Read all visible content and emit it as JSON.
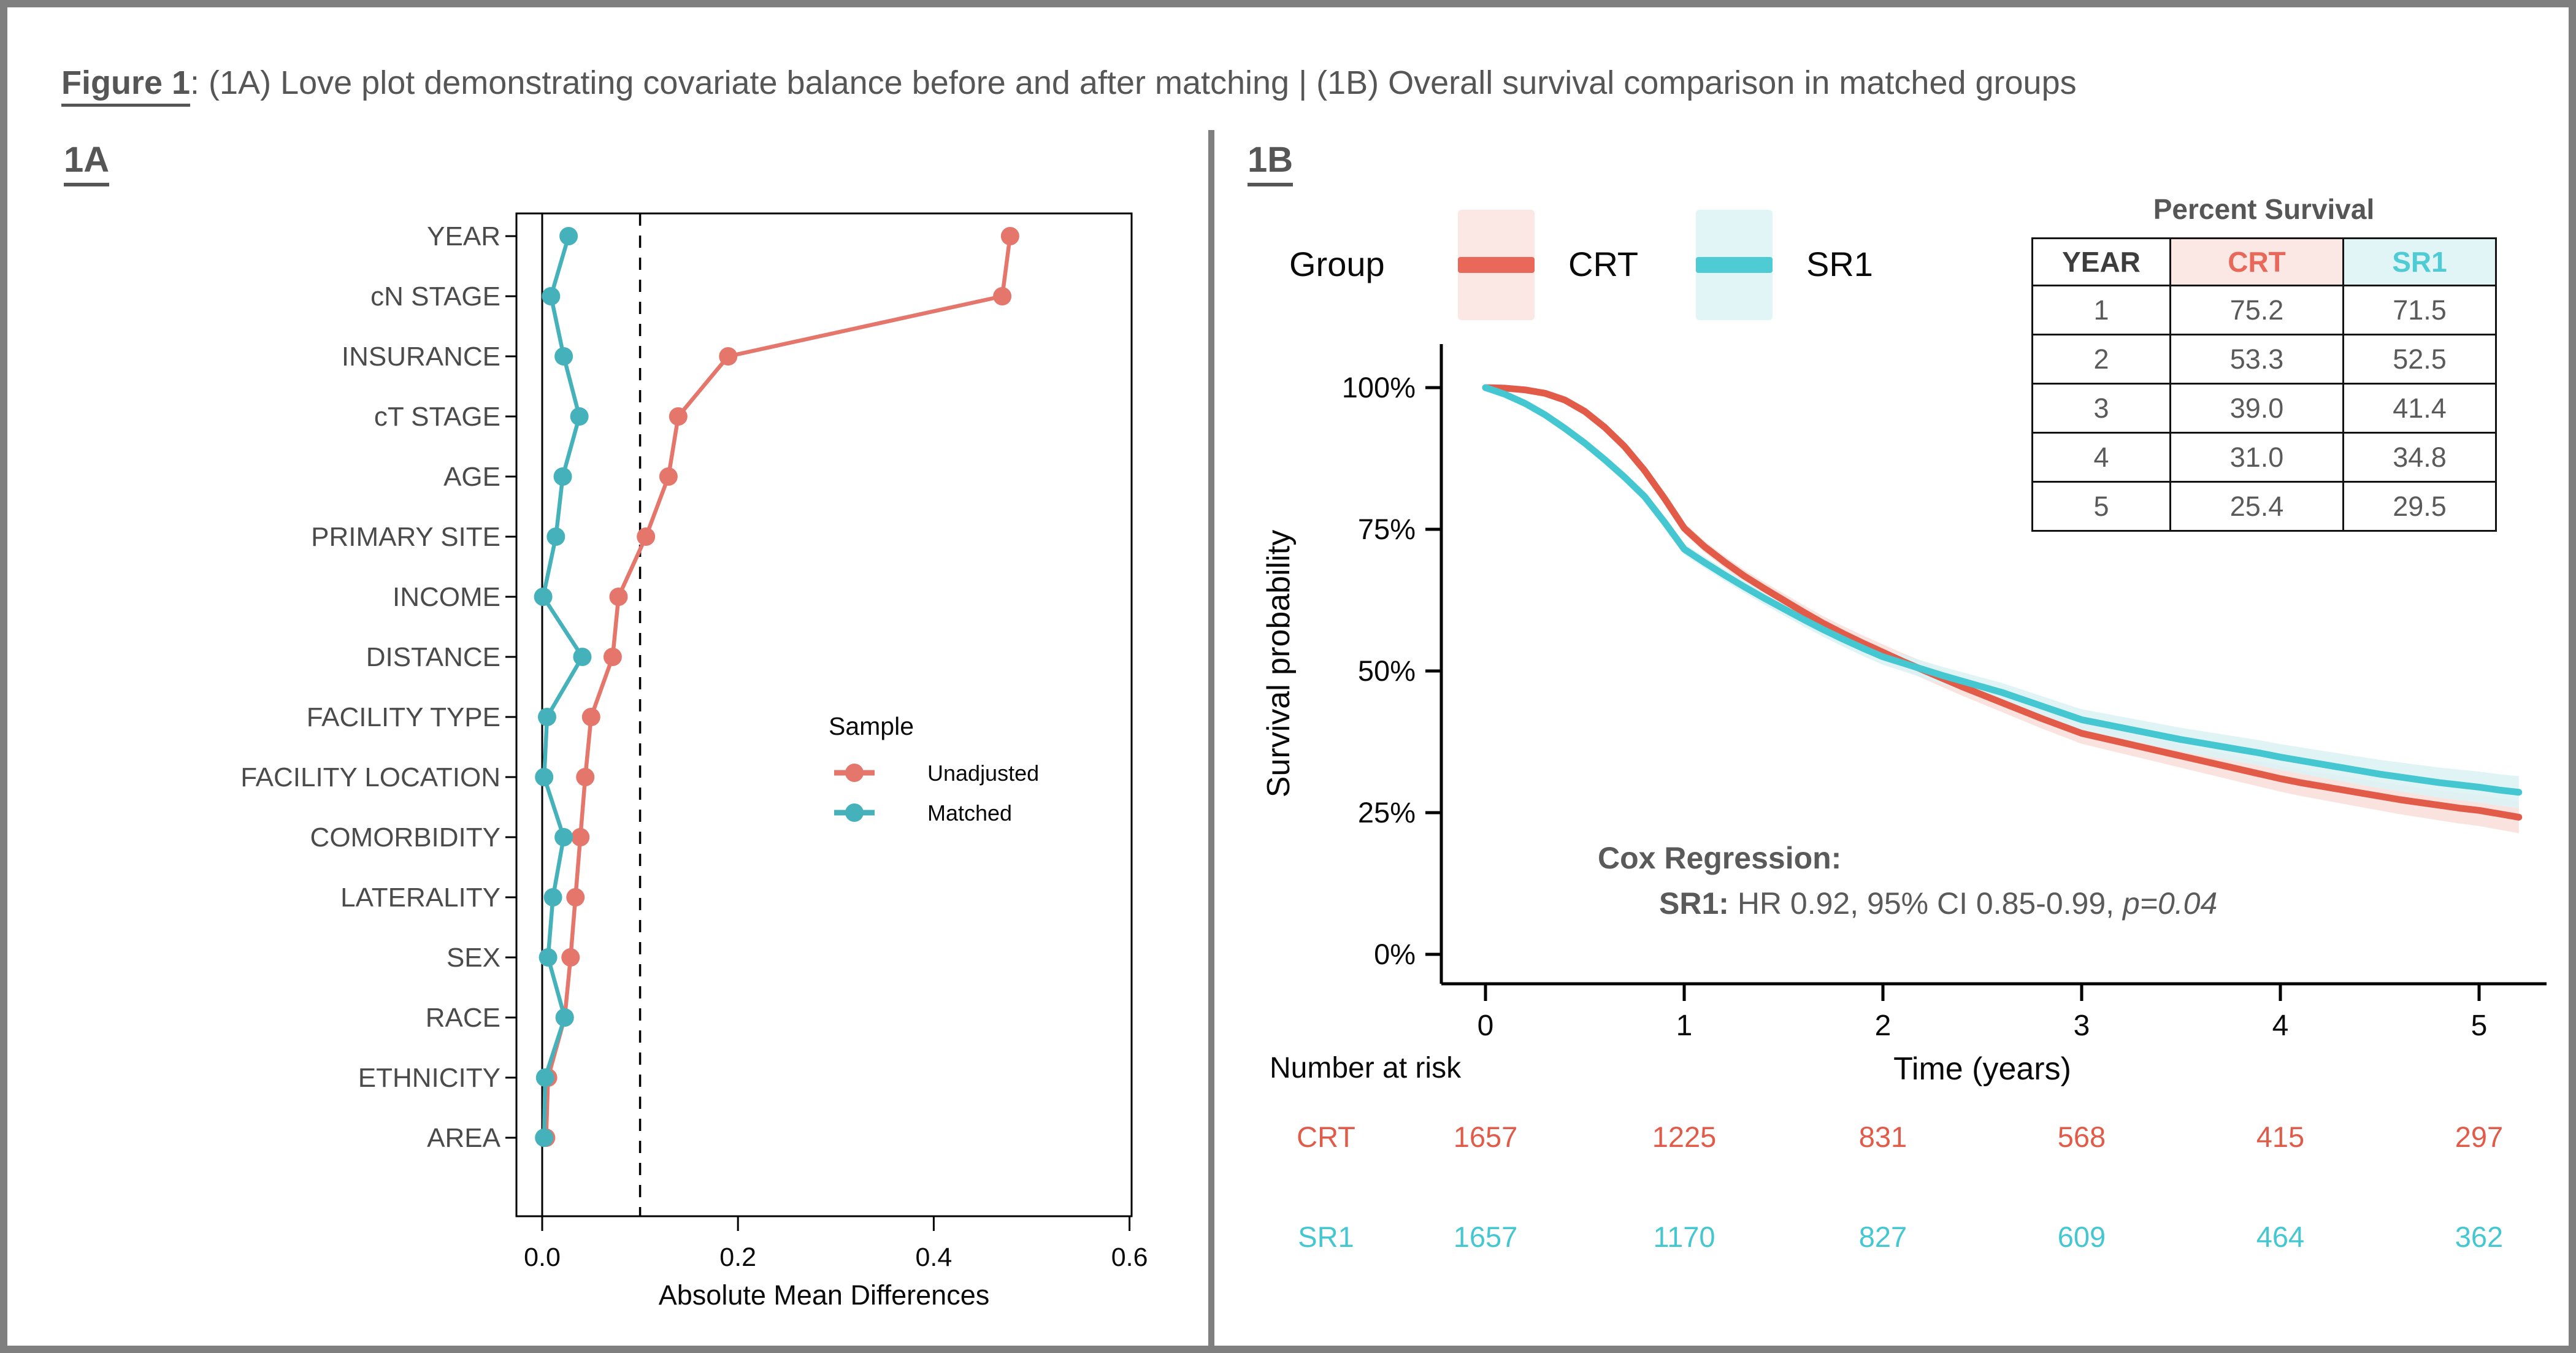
{
  "header": {
    "prefix": "Figure 1",
    "rest": ": (1A) Love plot demonstrating covariate balance before and after matching | (1B) Overall survival comparison in matched groups"
  },
  "colors": {
    "unadjusted": "#E4766C",
    "matched": "#45B2BB",
    "crt": "#E25B49",
    "sr1": "#45C7D1",
    "crt_band": "#F9DFDB",
    "sr1_band": "#DDF3F5",
    "crt_legend": "#E8695A",
    "sr1_legend": "#4FCBD4",
    "crt_bg": "#FBE7E4",
    "sr1_bg": "#E1F5F7",
    "frame": "#7F7F7F",
    "text_gray": "#565656"
  },
  "panel_a": {
    "label": "1A",
    "legend": {
      "title": "Sample",
      "items": [
        {
          "label": "Unadjusted",
          "color_key": "unadjusted"
        },
        {
          "label": "Matched",
          "color_key": "matched"
        }
      ]
    }
  },
  "panel_b": {
    "label": "1B",
    "legend": {
      "title": "Group",
      "items": [
        {
          "label": "CRT",
          "color_key": "crt_legend",
          "bg_key": "crt_bg"
        },
        {
          "label": "SR1",
          "color_key": "sr1_legend",
          "bg_key": "sr1_bg"
        }
      ]
    },
    "survival_table": {
      "title": "Percent Survival",
      "columns": [
        "YEAR",
        "CRT",
        "SR1"
      ],
      "rows": [
        [
          "1",
          "75.2",
          "71.5"
        ],
        [
          "2",
          "53.3",
          "52.5"
        ],
        [
          "3",
          "39.0",
          "41.4"
        ],
        [
          "4",
          "31.0",
          "34.8"
        ],
        [
          "5",
          "25.4",
          "29.5"
        ]
      ]
    },
    "cox": {
      "title": "Cox Regression:",
      "group_bold": "SR1:",
      "result": " HR 0.92, 95% CI 0.85-0.99, ",
      "p_italic": "p=0.04"
    },
    "risk_table": {
      "title": "Number at risk",
      "rows": [
        {
          "label": "CRT",
          "color_key": "crt",
          "values": [
            "1657",
            "1225",
            "831",
            "568",
            "415",
            "297"
          ]
        },
        {
          "label": "SR1",
          "color_key": "sr1",
          "values": [
            "1657",
            "1170",
            "827",
            "609",
            "464",
            "362"
          ]
        }
      ]
    }
  },
  "chart_data": [
    {
      "id": "love_plot",
      "type": "scatter",
      "xlabel": "Absolute Mean Differences",
      "categories": [
        "YEAR",
        "cN STAGE",
        "INSURANCE",
        "cT STAGE",
        "AGE",
        "PRIMARY SITE",
        "INCOME",
        "DISTANCE",
        "FACILITY TYPE",
        "FACILITY LOCATION",
        "COMORBIDITY",
        "LATERALITY",
        "SEX",
        "RACE",
        "ETHNICITY",
        "AREA"
      ],
      "x_ticks": [
        "0.0",
        "0.2",
        "0.4",
        "0.6"
      ],
      "x_tick_values": [
        0.0,
        0.2,
        0.4,
        0.6
      ],
      "xlim": [
        -0.027,
        0.603
      ],
      "threshold_line": 0.1,
      "zero_line": 0.0,
      "series": [
        {
          "name": "Unadjusted",
          "color_key": "unadjusted",
          "values": [
            0.478,
            0.47,
            0.19,
            0.139,
            0.129,
            0.106,
            0.078,
            0.072,
            0.05,
            0.044,
            0.039,
            0.034,
            0.029,
            0.023,
            0.006,
            0.004
          ]
        },
        {
          "name": "Matched",
          "color_key": "matched",
          "values": [
            0.027,
            0.009,
            0.022,
            0.038,
            0.021,
            0.014,
            0.001,
            0.041,
            0.005,
            0.002,
            0.022,
            0.011,
            0.006,
            0.023,
            0.003,
            0.002
          ]
        }
      ]
    },
    {
      "id": "km_plot",
      "type": "line",
      "xlabel": "Time (years)",
      "ylabel": "Survival probability",
      "x_ticks": [
        "0",
        "1",
        "2",
        "3",
        "4",
        "5"
      ],
      "x_tick_values": [
        0,
        1,
        2,
        3,
        4,
        5
      ],
      "y_ticks": [
        "100%",
        "75%",
        "50%",
        "25%",
        "0%"
      ],
      "y_tick_values": [
        100,
        75,
        50,
        25,
        0
      ],
      "xlim": [
        0,
        5.3
      ],
      "ylim": [
        0,
        100
      ],
      "x": [
        0,
        0.1,
        0.2,
        0.3,
        0.4,
        0.5,
        0.6,
        0.7,
        0.8,
        0.9,
        1.0,
        1.1,
        1.2,
        1.3,
        1.4,
        1.5,
        1.6,
        1.7,
        1.8,
        1.9,
        2.0,
        2.1,
        2.2,
        2.3,
        2.4,
        2.5,
        2.6,
        2.7,
        2.8,
        2.9,
        3.0,
        3.1,
        3.2,
        3.3,
        3.4,
        3.5,
        3.6,
        3.7,
        3.8,
        3.9,
        4.0,
        4.1,
        4.2,
        4.3,
        4.4,
        4.5,
        4.6,
        4.7,
        4.8,
        4.9,
        5.0,
        5.1,
        5.2
      ],
      "series": [
        {
          "name": "CRT",
          "color_key": "crt",
          "band_key": "crt_band",
          "values": [
            100,
            99.9,
            99.6,
            99.0,
            97.8,
            95.8,
            93.0,
            89.6,
            85.4,
            80.5,
            75.2,
            72.0,
            69.3,
            66.8,
            64.6,
            62.5,
            60.4,
            58.4,
            56.6,
            54.9,
            53.3,
            51.7,
            50.2,
            48.7,
            47.2,
            45.8,
            44.4,
            43.0,
            41.6,
            40.3,
            39.0,
            38.2,
            37.4,
            36.6,
            35.8,
            35.0,
            34.2,
            33.4,
            32.6,
            31.8,
            31.0,
            30.3,
            29.7,
            29.1,
            28.5,
            27.9,
            27.3,
            26.8,
            26.3,
            25.8,
            25.4,
            24.8,
            24.2
          ]
        },
        {
          "name": "SR1",
          "color_key": "sr1",
          "band_key": "sr1_band",
          "values": [
            100,
            98.8,
            97.2,
            95.2,
            92.8,
            90.2,
            87.3,
            84.2,
            80.8,
            76.3,
            71.5,
            69.2,
            67.0,
            64.9,
            62.9,
            61.0,
            59.1,
            57.3,
            55.6,
            54.0,
            52.5,
            51.4,
            50.3,
            49.2,
            48.2,
            47.2,
            46.2,
            45.0,
            43.8,
            42.6,
            41.4,
            40.7,
            40.0,
            39.3,
            38.6,
            37.9,
            37.3,
            36.7,
            36.1,
            35.5,
            34.8,
            34.2,
            33.6,
            33.0,
            32.4,
            31.8,
            31.3,
            30.8,
            30.3,
            29.9,
            29.5,
            29.0,
            28.6
          ]
        }
      ]
    }
  ]
}
